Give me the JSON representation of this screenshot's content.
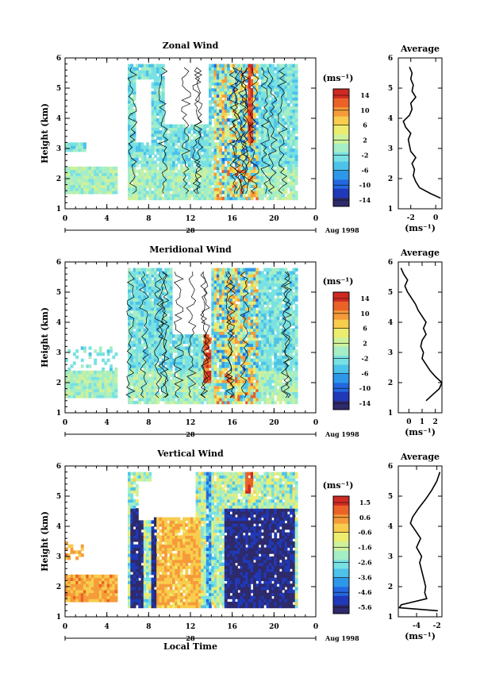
{
  "figure": {
    "date_label": "Aug 1998",
    "day_label": "28",
    "x_title_bottom": "Local Time",
    "avg_title": "Average",
    "unit_label": "(ms⁻¹)"
  },
  "chart_data": [
    {
      "type": "heatmap",
      "title": "Zonal Wind",
      "ylabel": "Height (km)",
      "xlabel": "",
      "x_ticks": [
        "0",
        "4",
        "8",
        "12",
        "16",
        "20",
        "0"
      ],
      "xlim": [
        0,
        24
      ],
      "y_ticks": [
        "1",
        "2",
        "3",
        "4",
        "5",
        "6"
      ],
      "ylim": [
        1,
        6
      ],
      "colorbar": {
        "label": "(ms⁻¹)",
        "ticks": [
          "14",
          "10",
          "6",
          "2",
          "-2",
          "-6",
          "-10",
          "-14"
        ],
        "range": [
          -16,
          16
        ]
      },
      "average_profile": {
        "title": "Average",
        "xlabel": "(ms⁻¹)",
        "x_ticks": [
          "-2",
          "0"
        ],
        "xlim": [
          -3,
          0.5
        ],
        "y_ticks": [
          "1",
          "2",
          "3",
          "4",
          "5",
          "6"
        ],
        "heights": [
          1.35,
          1.5,
          1.7,
          1.9,
          2.1,
          2.3,
          2.5,
          2.7,
          2.9,
          3.1,
          3.3,
          3.5,
          3.7,
          3.9,
          4.1,
          4.3,
          4.5,
          4.7,
          4.9,
          5.1,
          5.3,
          5.5,
          5.7
        ],
        "values": [
          0.4,
          -0.4,
          -1.3,
          -1.6,
          -1.8,
          -1.7,
          -1.9,
          -1.6,
          -2.0,
          -2.1,
          -2.2,
          -2.0,
          -2.4,
          -2.6,
          -2.1,
          -1.9,
          -2.0,
          -1.6,
          -1.9,
          -1.8,
          -2.0,
          -1.9,
          -2.1
        ]
      }
    },
    {
      "type": "heatmap",
      "title": "Meridional Wind",
      "ylabel": "Height (km)",
      "xlabel": "",
      "x_ticks": [
        "0",
        "4",
        "8",
        "12",
        "16",
        "20",
        "0"
      ],
      "xlim": [
        0,
        24
      ],
      "y_ticks": [
        "1",
        "2",
        "3",
        "4",
        "5",
        "6"
      ],
      "ylim": [
        1,
        6
      ],
      "colorbar": {
        "label": "(ms⁻¹)",
        "ticks": [
          "14",
          "10",
          "6",
          "2",
          "-2",
          "-6",
          "-10",
          "-14"
        ],
        "range": [
          -16,
          16
        ]
      },
      "average_profile": {
        "title": "Average",
        "xlabel": "(ms⁻¹)",
        "x_ticks": [
          "0",
          "1",
          "2"
        ],
        "xlim": [
          -0.8,
          2.5
        ],
        "y_ticks": [
          "1",
          "2",
          "3",
          "4",
          "5",
          "6"
        ],
        "heights": [
          1.4,
          1.6,
          1.8,
          2.0,
          2.2,
          2.4,
          2.6,
          2.8,
          3.0,
          3.2,
          3.4,
          3.6,
          3.8,
          4.0,
          4.2,
          4.4,
          4.6,
          4.8,
          5.0,
          5.2,
          5.4,
          5.6,
          5.8
        ],
        "values": [
          1.3,
          1.8,
          2.3,
          2.5,
          2.0,
          1.6,
          1.3,
          1.0,
          1.1,
          0.9,
          1.0,
          1.3,
          1.1,
          1.3,
          1.0,
          0.7,
          0.5,
          0.2,
          -0.1,
          -0.3,
          -0.1,
          -0.4,
          -0.6
        ]
      }
    },
    {
      "type": "heatmap",
      "title": "Vertical Wind",
      "ylabel": "Height (km)",
      "xlabel": "Local Time",
      "x_ticks": [
        "0",
        "4",
        "8",
        "12",
        "16",
        "20",
        "0"
      ],
      "xlim": [
        0,
        24
      ],
      "y_ticks": [
        "1",
        "2",
        "3",
        "4",
        "5",
        "6"
      ],
      "ylim": [
        1,
        6
      ],
      "colorbar": {
        "label": "(ms⁻¹)",
        "ticks": [
          "1.5",
          "0.6",
          "-0.6",
          "-1.6",
          "-2.6",
          "-3.6",
          "-4.6",
          "-5.6"
        ],
        "range": [
          -6.0,
          2.0
        ]
      },
      "average_profile": {
        "title": "Average",
        "xlabel": "(ms⁻¹)",
        "x_ticks": [
          "-4",
          "-2"
        ],
        "xlim": [
          -5.8,
          -1.5
        ],
        "y_ticks": [
          "1",
          "2",
          "3",
          "4",
          "5",
          "6"
        ],
        "heights": [
          1.2,
          1.3,
          1.4,
          1.6,
          1.8,
          2.0,
          2.4,
          2.8,
          3.0,
          3.3,
          3.6,
          3.9,
          4.1,
          4.3,
          4.6,
          4.9,
          5.2,
          5.5,
          5.8
        ],
        "values": [
          -1.9,
          -5.7,
          -5.5,
          -3.0,
          -3.2,
          -3.1,
          -3.4,
          -3.7,
          -3.5,
          -4.0,
          -3.6,
          -4.2,
          -4.6,
          -4.4,
          -3.8,
          -3.1,
          -2.5,
          -2.0,
          -1.7
        ]
      }
    }
  ]
}
